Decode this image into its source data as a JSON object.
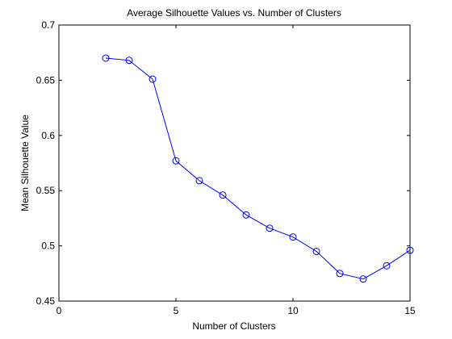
{
  "chart_data": {
    "type": "line",
    "title": "Average Silhouette Values vs. Number of Clusters",
    "xlabel": "Number of Clusters",
    "ylabel": "Mean Silhouette Value",
    "xlim": [
      0,
      15
    ],
    "ylim": [
      0.45,
      0.7
    ],
    "xticks": [
      0,
      5,
      10,
      15
    ],
    "xtick_labels": [
      "0",
      "5",
      "10",
      "15"
    ],
    "yticks": [
      0.45,
      0.5,
      0.55,
      0.6,
      0.65,
      0.7
    ],
    "ytick_labels": [
      "0.45",
      "0.5",
      "0.55",
      "0.6",
      "0.65",
      "0.7"
    ],
    "grid": false,
    "series": [
      {
        "x": [
          2,
          3,
          4,
          5,
          6,
          7,
          8,
          9,
          10,
          11,
          12,
          13,
          14,
          15
        ],
        "y": [
          0.67,
          0.668,
          0.651,
          0.577,
          0.559,
          0.546,
          0.528,
          0.516,
          0.508,
          0.495,
          0.475,
          0.47,
          0.482,
          0.496
        ],
        "color": "#0000ff",
        "marker": "circle"
      }
    ]
  }
}
